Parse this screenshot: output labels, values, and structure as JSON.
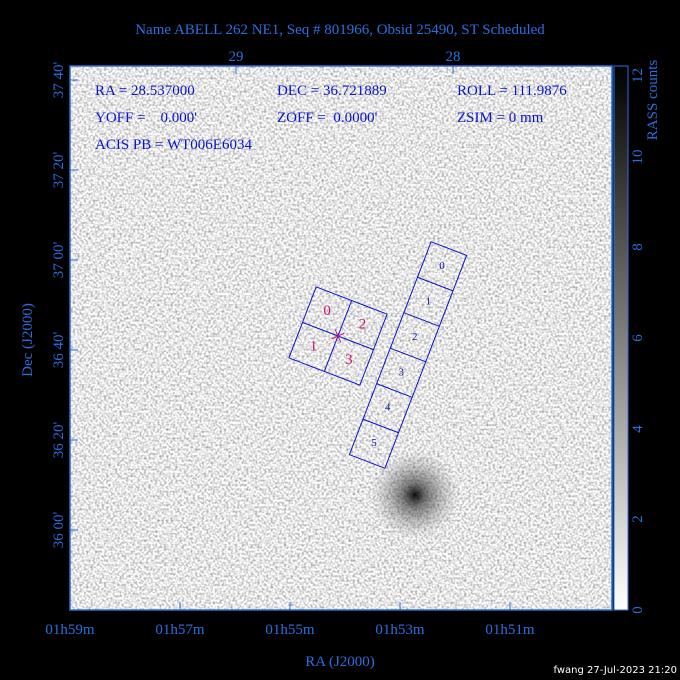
{
  "title": "Name ABELL 262 NE1, Seq # 801966, Obsid 25490, ST Scheduled",
  "top_axis": {
    "ticks": [
      "29",
      "28"
    ]
  },
  "left_axis": {
    "label": "Dec (J2000)",
    "ticks": [
      "37 40'",
      "37 20'",
      "37 00'",
      "36 40'",
      "36 20'",
      "36 00'"
    ]
  },
  "bottom_axis": {
    "label": "RA (J2000)",
    "ticks": [
      "01h59m",
      "01h57m",
      "01h55m",
      "01h53m",
      "01h51m"
    ]
  },
  "info": {
    "rows": [
      [
        "RA = 28.537000",
        "DEC = 36.721889",
        "ROLL = 111.9876"
      ],
      [
        "YOFF =    0.000'",
        "ZOFF =  0.0000'",
        "ZSIM = 0 mm"
      ],
      [
        "ACIS PB = WT006E6034"
      ]
    ]
  },
  "acis_i_chips": [
    "0",
    "1",
    "2",
    "3"
  ],
  "acis_s_chips": [
    "0",
    "1",
    "2",
    "3",
    "4",
    "5"
  ],
  "colorbar": {
    "label": "RASS counts",
    "ticks": [
      "0",
      "2",
      "4",
      "6",
      "8",
      "10",
      "12"
    ]
  },
  "footer": "fwang 27-Jul-2023 21:20"
}
